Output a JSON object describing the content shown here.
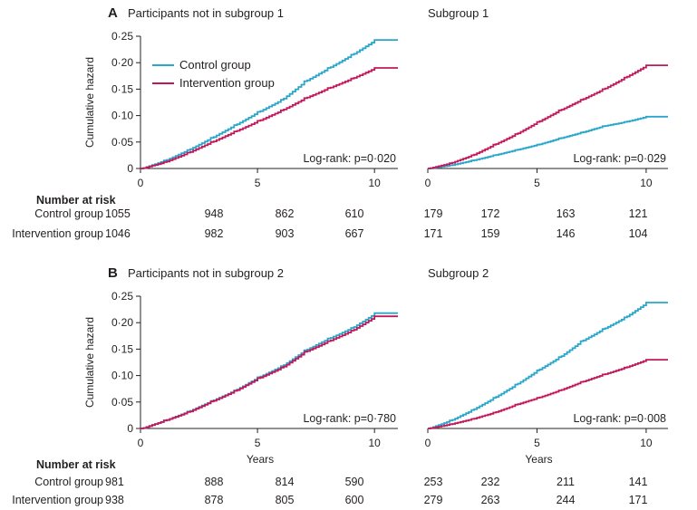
{
  "colors": {
    "control": "#29a6c9",
    "intervention": "#c2185b",
    "axis": "#231f20"
  },
  "number_at_risk_label": "Number at risk",
  "legend": {
    "control": "Control group",
    "intervention": "Intervention group"
  },
  "chart_data": [
    {
      "type": "line",
      "panel": "A",
      "title": "Participants not in subgroup 1",
      "xlabel": "",
      "ylabel": "Cumulative hazard",
      "xlim": [
        0,
        11
      ],
      "ylim": [
        0,
        0.25
      ],
      "x_ticks": [
        "0",
        "5",
        "10"
      ],
      "y_ticks": [
        "0",
        "0·05",
        "0·10",
        "0·15",
        "0·20",
        "0·25"
      ],
      "annotation": "Log-rank: p=0·020",
      "legend_position": "top-left",
      "series": [
        {
          "name": "Control group",
          "x": [
            0,
            1,
            2,
            3,
            4,
            5,
            6,
            7,
            8,
            9,
            10,
            11
          ],
          "y": [
            0,
            0.015,
            0.035,
            0.058,
            0.082,
            0.107,
            0.13,
            0.165,
            0.19,
            0.215,
            0.243,
            0.243
          ]
        },
        {
          "name": "Intervention group",
          "x": [
            0,
            1,
            2,
            3,
            4,
            5,
            6,
            7,
            8,
            9,
            10,
            11
          ],
          "y": [
            0,
            0.012,
            0.03,
            0.05,
            0.07,
            0.09,
            0.11,
            0.133,
            0.152,
            0.17,
            0.19,
            0.19
          ]
        }
      ],
      "risk_table": {
        "control_label": "Control group",
        "intervention_label": "Intervention group",
        "control": [
          "1055",
          "948",
          "862",
          "610"
        ],
        "intervention": [
          "1046",
          "982",
          "903",
          "667"
        ]
      }
    },
    {
      "type": "line",
      "panel": "",
      "title": "Subgroup 1",
      "xlabel": "",
      "ylabel": "",
      "xlim": [
        0,
        11
      ],
      "ylim": [
        0,
        0.25
      ],
      "x_ticks": [
        "0",
        "5",
        "10"
      ],
      "annotation": "Log-rank: p=0·029",
      "series": [
        {
          "name": "Control group",
          "x": [
            0,
            1,
            2,
            3,
            4,
            5,
            6,
            7,
            8,
            9,
            10,
            11
          ],
          "y": [
            0,
            0.006,
            0.015,
            0.025,
            0.035,
            0.045,
            0.057,
            0.068,
            0.08,
            0.088,
            0.098,
            0.098
          ]
        },
        {
          "name": "Intervention group",
          "x": [
            0,
            1,
            2,
            3,
            4,
            5,
            6,
            7,
            8,
            9,
            10,
            11
          ],
          "y": [
            0,
            0.01,
            0.025,
            0.045,
            0.065,
            0.088,
            0.11,
            0.13,
            0.15,
            0.172,
            0.195,
            0.195
          ]
        }
      ],
      "risk_table": {
        "control": [
          "179",
          "172",
          "163",
          "121"
        ],
        "intervention": [
          "171",
          "159",
          "146",
          "104"
        ]
      }
    },
    {
      "type": "line",
      "panel": "B",
      "title": "Participants not in subgroup 2",
      "xlabel": "Years",
      "ylabel": "Cumulative hazard",
      "xlim": [
        0,
        11
      ],
      "ylim": [
        0,
        0.25
      ],
      "x_ticks": [
        "0",
        "5",
        "10"
      ],
      "y_ticks": [
        "0",
        "0·05",
        "0·10",
        "0·15",
        "0·20",
        "0·25"
      ],
      "annotation": "Log-rank: p=0·780",
      "series": [
        {
          "name": "Control group",
          "x": [
            0,
            1,
            2,
            3,
            4,
            5,
            6,
            7,
            8,
            9,
            10,
            11
          ],
          "y": [
            0,
            0.015,
            0.032,
            0.052,
            0.072,
            0.097,
            0.118,
            0.148,
            0.17,
            0.19,
            0.218,
            0.218
          ]
        },
        {
          "name": "Intervention group",
          "x": [
            0,
            1,
            2,
            3,
            4,
            5,
            6,
            7,
            8,
            9,
            10,
            11
          ],
          "y": [
            0,
            0.015,
            0.031,
            0.051,
            0.071,
            0.095,
            0.115,
            0.145,
            0.165,
            0.185,
            0.212,
            0.212
          ]
        }
      ],
      "risk_table": {
        "control_label": "Control group",
        "intervention_label": "Intervention group",
        "control": [
          "981",
          "888",
          "814",
          "590"
        ],
        "intervention": [
          "938",
          "878",
          "805",
          "600"
        ]
      }
    },
    {
      "type": "line",
      "panel": "",
      "title": "Subgroup 2",
      "xlabel": "Years",
      "ylabel": "",
      "xlim": [
        0,
        11
      ],
      "ylim": [
        0,
        0.25
      ],
      "x_ticks": [
        "0",
        "5",
        "10"
      ],
      "annotation": "Log-rank: p=0·008",
      "series": [
        {
          "name": "Control group",
          "x": [
            0,
            1,
            2,
            3,
            4,
            5,
            6,
            7,
            8,
            9,
            10,
            11
          ],
          "y": [
            0,
            0.015,
            0.035,
            0.058,
            0.083,
            0.11,
            0.135,
            0.165,
            0.188,
            0.21,
            0.238,
            0.238
          ]
        },
        {
          "name": "Intervention group",
          "x": [
            0,
            1,
            2,
            3,
            4,
            5,
            6,
            7,
            8,
            9,
            10,
            11
          ],
          "y": [
            0,
            0.008,
            0.018,
            0.03,
            0.045,
            0.058,
            0.072,
            0.088,
            0.102,
            0.115,
            0.13,
            0.13
          ]
        }
      ],
      "risk_table": {
        "control": [
          "253",
          "232",
          "211",
          "141"
        ],
        "intervention": [
          "279",
          "263",
          "244",
          "171"
        ]
      }
    }
  ]
}
